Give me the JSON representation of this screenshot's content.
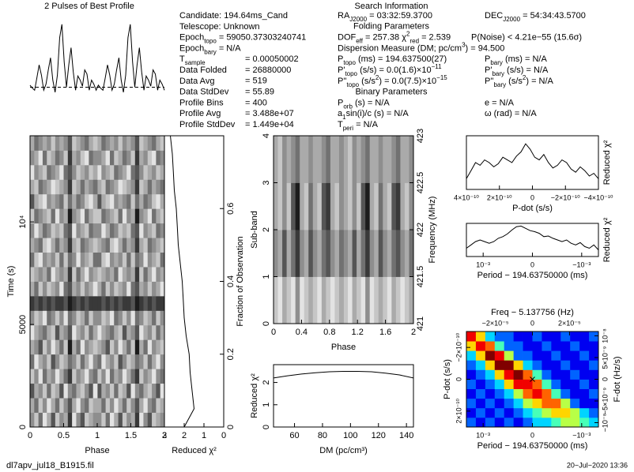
{
  "info": {
    "title": "Search Information",
    "left": [
      {
        "label": [
          {
            "t": "Candidate:  194.64ms_Cand"
          }
        ]
      },
      {
        "label": [
          {
            "t": "Telescope:  Unknown"
          }
        ]
      },
      {
        "label": [
          {
            "t": "Epoch"
          },
          {
            "sub": "topo"
          },
          {
            "t": " = 59050.37303240741"
          }
        ]
      },
      {
        "label": [
          {
            "t": "Epoch"
          },
          {
            "sub": "bary"
          },
          {
            "t": " = N/A"
          }
        ]
      },
      {
        "label": [
          {
            "t": "T"
          },
          {
            "sub": "sample"
          }
        ],
        "value": "=  0.00050002"
      },
      {
        "label": [
          {
            "t": "Data Folded"
          }
        ],
        "value": "=  26880000"
      },
      {
        "label": [
          {
            "t": "Data Avg"
          }
        ],
        "value": "=  519"
      },
      {
        "label": [
          {
            "t": "Data StdDev"
          }
        ],
        "value": "=  55.89"
      },
      {
        "label": [
          {
            "t": "Profile Bins"
          }
        ],
        "value": "=  400"
      },
      {
        "label": [
          {
            "t": "Profile Avg"
          }
        ],
        "value": "=  3.488e+07"
      },
      {
        "label": [
          {
            "t": "Profile StdDev"
          }
        ],
        "value": "=  1.449e+04"
      }
    ],
    "middle": [
      {
        "parts": [
          {
            "t": "RA"
          },
          {
            "sub": "J2000"
          },
          {
            "t": " = 03:32:59.3700"
          }
        ]
      },
      {
        "heading": "Folding Parameters"
      },
      {
        "parts": [
          {
            "t": "DOF"
          },
          {
            "sub": "eff"
          },
          {
            "t": " = 257.38   χ"
          },
          {
            "sup": "2"
          },
          {
            "sub": "red"
          },
          {
            "t": " = 2.539"
          }
        ]
      },
      {
        "parts": [
          {
            "t": "Dispersion Measure (DM; pc/cm"
          },
          {
            "sup": "3"
          },
          {
            "t": ") = 94.500"
          }
        ]
      },
      {
        "parts": [
          {
            "t": "P"
          },
          {
            "sub": "topo"
          },
          {
            "t": " (ms) = 194.637500(27)"
          }
        ]
      },
      {
        "parts": [
          {
            "t": "P'"
          },
          {
            "sub": "topo"
          },
          {
            "t": " (s/s) = 0.0(1.6)×10"
          },
          {
            "sup": "−11"
          }
        ]
      },
      {
        "parts": [
          {
            "t": "P''"
          },
          {
            "sub": "topo"
          },
          {
            "t": " (s/s"
          },
          {
            "sup": "2"
          },
          {
            "t": ") = 0.0(7.5)×10"
          },
          {
            "sup": "−15"
          }
        ]
      },
      {
        "heading": "Binary Parameters"
      },
      {
        "parts": [
          {
            "t": "P"
          },
          {
            "sub": "orb"
          },
          {
            "t": " (s) = N/A"
          }
        ]
      },
      {
        "parts": [
          {
            "t": "a"
          },
          {
            "sub": "1"
          },
          {
            "t": "sin(i)/c (s) = N/A"
          }
        ]
      },
      {
        "parts": [
          {
            "t": "T"
          },
          {
            "sub": "peri"
          },
          {
            "t": " = N/A"
          }
        ]
      }
    ],
    "right": [
      {
        "parts": [
          {
            "t": "DEC"
          },
          {
            "sub": "J2000"
          },
          {
            "t": " = 54:34:43.5700"
          }
        ]
      },
      {
        "parts": [
          {
            "t": "P(Noise) < 4.21e−55   (15.6σ)"
          }
        ]
      },
      {
        "parts": [
          {
            "t": "P"
          },
          {
            "sub": "bary"
          },
          {
            "t": " (ms) = N/A"
          }
        ]
      },
      {
        "parts": [
          {
            "t": "P'"
          },
          {
            "sub": "bary"
          },
          {
            "t": " (s/s) = N/A"
          }
        ]
      },
      {
        "parts": [
          {
            "t": "P''"
          },
          {
            "sub": "bary"
          },
          {
            "t": " (s/s"
          },
          {
            "sup": "2"
          },
          {
            "t": ") = N/A"
          }
        ]
      },
      {
        "parts": [
          {
            "t": "e = N/A"
          }
        ]
      },
      {
        "parts": [
          {
            "t": "ω (rad) = N/A"
          }
        ]
      }
    ]
  },
  "footer": {
    "filename": "dl7apv_jul18_B1915.fil",
    "date": "20−Jul−2020  13:36"
  },
  "chart_data": [
    {
      "type": "line",
      "title": "2 Pulses of Best Profile",
      "color": "#000000",
      "xlim": [
        0,
        2
      ],
      "ylim": [
        0.1,
        1.05
      ],
      "mean": 0.33,
      "values": [
        0.35,
        0.32,
        0.3,
        0.42,
        0.55,
        0.45,
        0.3,
        0.36,
        0.5,
        0.62,
        0.4,
        0.28,
        0.45,
        0.82,
        0.95,
        0.58,
        0.33,
        0.55,
        0.72,
        0.48,
        0.3,
        0.44,
        0.4,
        0.34,
        0.5,
        0.46,
        0.3,
        0.4,
        0.36,
        0.3,
        0.35,
        0.32,
        0.3,
        0.42,
        0.55,
        0.45,
        0.3,
        0.36,
        0.5,
        0.62,
        0.4,
        0.28,
        0.45,
        0.82,
        0.95,
        0.58,
        0.33,
        0.55,
        0.72,
        0.48,
        0.3,
        0.44,
        0.4,
        0.34,
        0.5,
        0.46,
        0.3,
        0.4,
        0.36,
        0.3
      ]
    },
    {
      "type": "heatmap",
      "colormap": "gray",
      "zlim": [
        0,
        9
      ],
      "xlabel": "Phase",
      "ylabel": "Time (s)",
      "xlim": [
        0,
        2
      ],
      "xticks": [
        0,
        0.5,
        1,
        1.5,
        2
      ],
      "ylim": [
        0,
        14200
      ],
      "yticks": [
        0,
        5000,
        {
          "value": 10000,
          "label": "10⁴"
        }
      ],
      "values": [
        [
          5,
          7,
          4,
          8,
          6,
          3,
          7,
          5,
          6,
          2,
          8,
          5,
          3,
          7,
          6,
          5
        ],
        [
          6,
          4,
          7,
          5,
          8,
          6,
          4,
          7,
          5,
          3,
          6,
          8,
          5,
          4,
          7,
          6
        ],
        [
          3,
          6,
          5,
          7,
          4,
          7,
          6,
          3,
          8,
          5,
          4,
          6,
          7,
          5,
          3,
          8
        ],
        [
          7,
          5,
          8,
          4,
          6,
          5,
          8,
          6,
          4,
          2,
          7,
          5,
          6,
          8,
          5,
          4
        ],
        [
          4,
          8,
          6,
          5,
          7,
          3,
          5,
          7,
          6,
          4,
          5,
          7,
          4,
          6,
          8,
          5
        ],
        [
          6,
          5,
          3,
          7,
          5,
          8,
          6,
          4,
          7,
          1,
          6,
          4,
          8,
          5,
          6,
          7
        ],
        [
          8,
          6,
          5,
          4,
          6,
          7,
          3,
          6,
          5,
          3,
          8,
          6,
          5,
          7,
          4,
          6
        ],
        [
          5,
          7,
          6,
          8,
          4,
          5,
          7,
          5,
          8,
          4,
          5,
          7,
          6,
          4,
          7,
          5
        ],
        [
          2,
          3,
          2,
          3,
          2,
          3,
          2,
          2,
          3,
          1,
          2,
          3,
          2,
          3,
          2,
          2
        ],
        [
          6,
          4,
          7,
          5,
          7,
          6,
          5,
          8,
          4,
          3,
          6,
          5,
          7,
          5,
          6,
          8
        ],
        [
          7,
          6,
          5,
          6,
          4,
          8,
          6,
          5,
          6,
          2,
          7,
          4,
          6,
          8,
          5,
          6
        ],
        [
          4,
          7,
          8,
          5,
          6,
          5,
          7,
          4,
          7,
          4,
          5,
          8,
          5,
          6,
          7,
          4
        ],
        [
          6,
          5,
          4,
          7,
          8,
          6,
          4,
          6,
          5,
          2,
          6,
          7,
          4,
          5,
          6,
          7
        ],
        [
          5,
          8,
          6,
          4,
          5,
          7,
          6,
          7,
          4,
          3,
          8,
          5,
          6,
          7,
          4,
          5
        ],
        [
          7,
          4,
          5,
          6,
          7,
          4,
          8,
          5,
          6,
          1,
          5,
          6,
          8,
          4,
          6,
          7
        ],
        [
          3,
          6,
          7,
          8,
          5,
          6,
          5,
          4,
          7,
          4,
          6,
          4,
          5,
          7,
          8,
          6
        ],
        [
          6,
          7,
          4,
          5,
          6,
          8,
          7,
          6,
          5,
          2,
          7,
          6,
          4,
          6,
          5,
          4
        ],
        [
          8,
          5,
          6,
          7,
          4,
          5,
          6,
          8,
          4,
          3,
          5,
          7,
          6,
          5,
          7,
          6
        ],
        [
          5,
          6,
          8,
          4,
          7,
          6,
          4,
          5,
          7,
          2,
          6,
          5,
          7,
          8,
          4,
          5
        ],
        [
          6,
          4,
          5,
          6,
          5,
          7,
          5,
          6,
          5,
          3,
          7,
          6,
          5,
          4,
          6,
          7
        ]
      ]
    },
    {
      "type": "line",
      "orient": "vertical",
      "color": "#000000",
      "xlabel": "Reduced χ²",
      "ylabel": "Fraction of Observation",
      "xlim": [
        3,
        0
      ],
      "xticks": [
        3,
        2,
        1,
        0
      ],
      "ylim": [
        0,
        0.8
      ],
      "yticks": [
        0,
        0.2,
        0.4,
        0.6
      ],
      "y": [
        0,
        0.05,
        0.1,
        0.15,
        0.2,
        0.25,
        0.3,
        0.35,
        0.4,
        0.45,
        0.5,
        0.55,
        0.6,
        0.65,
        0.7,
        0.75,
        0.8
      ],
      "values": [
        2.0,
        1.5,
        1.6,
        1.7,
        1.75,
        1.9,
        2.0,
        2.05,
        2.1,
        2.2,
        2.3,
        2.35,
        2.4,
        2.5,
        2.55,
        2.6,
        2.7
      ]
    },
    {
      "type": "heatmap",
      "colormap": "gray",
      "zlim": [
        0,
        9
      ],
      "xlabel": "Phase",
      "ylabel": "Sub-band",
      "y2label": "Frequency (MHz)",
      "xlim": [
        0,
        2
      ],
      "xticks": [
        0,
        0.4,
        0.8,
        1.2,
        1.6,
        2
      ],
      "ylim": [
        0,
        4
      ],
      "yticks": [
        0,
        1,
        2,
        3,
        4
      ],
      "y2lim": [
        421,
        423
      ],
      "y2ticks": [
        421,
        421.5,
        422,
        422.5,
        423
      ],
      "values": [
        [
          7,
          8,
          6,
          7,
          8,
          5,
          8,
          7,
          6,
          7,
          8,
          6,
          7,
          8,
          7,
          6
        ],
        [
          5,
          6,
          3,
          6,
          4,
          2,
          5,
          6,
          3,
          5,
          6,
          4,
          3,
          5,
          6,
          4
        ],
        [
          6,
          7,
          5,
          7,
          3,
          1,
          6,
          7,
          4,
          6,
          7,
          3,
          2,
          6,
          7,
          5
        ],
        [
          6,
          7,
          5,
          6,
          5,
          4,
          6,
          6,
          5,
          6,
          6,
          5,
          4,
          6,
          6,
          5
        ]
      ]
    },
    {
      "type": "line",
      "color": "#000000",
      "xlabel": "DM (pc/cm³)",
      "ylabel": "Reduced χ²",
      "xlim": [
        45,
        145
      ],
      "xticks": [
        60,
        80,
        100,
        120,
        140
      ],
      "ylim": [
        0,
        2.8
      ],
      "yticks": [
        0,
        1,
        2
      ],
      "x": [
        45,
        55,
        65,
        75,
        85,
        95,
        105,
        115,
        125,
        135,
        145
      ],
      "values": [
        2.2,
        2.3,
        2.38,
        2.44,
        2.48,
        2.5,
        2.5,
        2.48,
        2.42,
        2.34,
        2.2
      ]
    },
    {
      "type": "line",
      "color": "#000000",
      "xlabel": "P-dot (s/s)",
      "ylabel": "Reduced χ²",
      "xlim": [
        4e-10,
        -4e-10
      ],
      "ylim": [
        0,
        1
      ],
      "xticks": [
        {
          "value": 4e-10,
          "label": "4×10⁻¹⁰"
        },
        {
          "value": 2e-10,
          "label": "2×10⁻¹⁰"
        },
        0,
        {
          "value": -2e-10,
          "label": "−2×10⁻¹⁰"
        },
        {
          "value": -4e-10,
          "label": "−4×10⁻¹⁰"
        }
      ],
      "values": [
        0.2,
        0.35,
        0.5,
        0.45,
        0.55,
        0.5,
        0.42,
        0.48,
        0.6,
        0.55,
        0.5,
        0.62,
        0.7,
        0.85,
        0.75,
        0.6,
        0.55,
        0.65,
        0.5,
        0.4,
        0.45,
        0.55,
        0.5,
        0.38,
        0.32,
        0.42,
        0.35,
        0.25,
        0.3,
        0.2
      ]
    },
    {
      "type": "line",
      "color": "#000000",
      "xlabel": "Period − 194.63750000 (ms)",
      "ylabel": "Reduced χ²",
      "xlim": [
        0.00134,
        -0.00134
      ],
      "ylim": [
        0,
        1
      ],
      "xticks": [
        {
          "value": 0.001,
          "label": "10⁻³"
        },
        0,
        {
          "value": -0.001,
          "label": "−10⁻³"
        }
      ],
      "values": [
        0.25,
        0.35,
        0.45,
        0.5,
        0.45,
        0.4,
        0.45,
        0.55,
        0.6,
        0.68,
        0.8,
        0.9,
        0.92,
        0.85,
        0.78,
        0.75,
        0.7,
        0.6,
        0.62,
        0.55,
        0.5,
        0.45,
        0.5,
        0.4,
        0.35,
        0.42,
        0.3,
        0.25,
        0.35,
        0.2
      ]
    },
    {
      "type": "heatmap",
      "colormap": "jet",
      "zlim": [
        0,
        9
      ],
      "xlabel": "Period − 194.63750000 (ms)",
      "ylabel": "P-dot (s/s)",
      "x2label": "Freq − 5.137756 (Hz)",
      "y2label": "F-dot (Hz/s)",
      "xlim": [
        0.00134,
        -0.00134
      ],
      "xticks": [
        {
          "value": 0.001,
          "label": "10⁻³"
        },
        0,
        {
          "value": -0.001,
          "label": "−10⁻³"
        }
      ],
      "ylim": [
        3e-10,
        -3e-10
      ],
      "yticks": [
        {
          "value": 2e-10,
          "label": "2×10⁻¹⁰"
        },
        0,
        {
          "value": -2e-10,
          "label": "−2×10⁻¹⁰"
        }
      ],
      "x2lim": [
        -3.56e-05,
        3.56e-05
      ],
      "x2ticks": [
        {
          "value": -2e-05,
          "label": "−2×10⁻⁵"
        },
        0,
        {
          "value": 2e-05,
          "label": "2×10⁻⁵"
        }
      ],
      "y2lim": [
        -1.1e-08,
        1.1e-08
      ],
      "y2ticks": [
        {
          "value": -1e-08,
          "label": "−10⁻⁸"
        },
        {
          "value": -5e-09,
          "label": "−5×10⁻⁹"
        },
        0,
        {
          "value": 5e-09,
          "label": "5×10⁻⁹"
        },
        {
          "value": 1e-08,
          "label": "10⁻⁸"
        }
      ],
      "best": {
        "x": 0,
        "y": 0
      },
      "values": [
        [
          2,
          1,
          2,
          1,
          2,
          1,
          2,
          3,
          3,
          4,
          5,
          5,
          4,
          3
        ],
        [
          1,
          2,
          1,
          2,
          1,
          2,
          3,
          4,
          5,
          6,
          6,
          5,
          3,
          2
        ],
        [
          2,
          1,
          2,
          1,
          2,
          3,
          5,
          6,
          7,
          7,
          5,
          2,
          1,
          1
        ],
        [
          1,
          2,
          1,
          2,
          3,
          5,
          7,
          8,
          7,
          4,
          2,
          1,
          1,
          2
        ],
        [
          2,
          1,
          2,
          3,
          6,
          8,
          8,
          7,
          4,
          2,
          1,
          1,
          2,
          1
        ],
        [
          1,
          2,
          3,
          6,
          8,
          9,
          7,
          4,
          2,
          1,
          1,
          2,
          1,
          1
        ],
        [
          2,
          3,
          6,
          9,
          9,
          6,
          3,
          2,
          1,
          1,
          2,
          1,
          1,
          2
        ],
        [
          3,
          6,
          9,
          8,
          5,
          2,
          2,
          1,
          1,
          2,
          1,
          1,
          2,
          1
        ],
        [
          6,
          8,
          7,
          4,
          2,
          2,
          1,
          1,
          2,
          1,
          1,
          2,
          1,
          1
        ],
        [
          8,
          6,
          3,
          2,
          2,
          1,
          1,
          2,
          1,
          1,
          2,
          1,
          1,
          2
        ]
      ]
    }
  ]
}
